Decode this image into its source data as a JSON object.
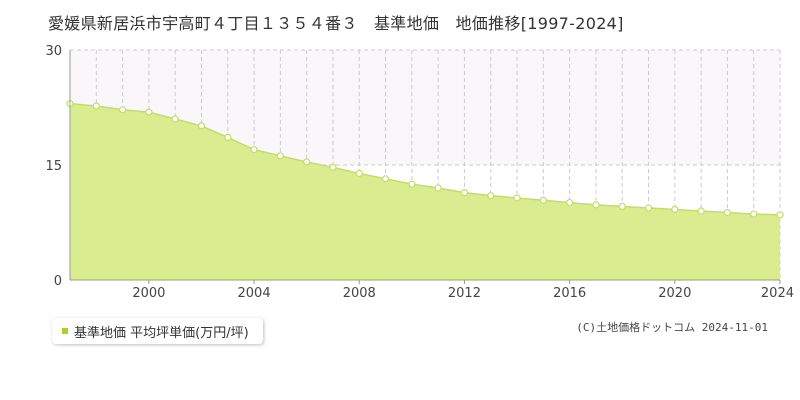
{
  "title": "愛媛県新居浜市宇高町４丁目１３５４番３　基準地価　地価推移[1997-2024]",
  "legend_label": "基準地価 平均坪単価(万円/坪)",
  "credit": "(C)土地価格ドットコム 2024-11-01",
  "colors": {
    "area_fill": "#dbec90",
    "line": "#c2e05a",
    "marker_fill": "#ffffff",
    "legend_swatch": "#a8d228"
  },
  "chart_data": {
    "type": "area",
    "title": "愛媛県新居浜市宇高町４丁目１３５４番３　基準地価　地価推移[1997-2024]",
    "xlabel": "",
    "ylabel": "",
    "xlim": [
      1997,
      2024
    ],
    "ylim": [
      0,
      30
    ],
    "x_ticks": [
      2000,
      2004,
      2008,
      2012,
      2016,
      2020,
      2024
    ],
    "y_ticks": [
      0,
      15,
      30
    ],
    "grid": true,
    "legend_position": "bottom-left",
    "series": [
      {
        "name": "基準地価 平均坪単価(万円/坪)",
        "x": [
          1997,
          1998,
          1999,
          2000,
          2001,
          2002,
          2003,
          2004,
          2005,
          2006,
          2007,
          2008,
          2009,
          2010,
          2011,
          2012,
          2013,
          2014,
          2015,
          2016,
          2017,
          2018,
          2019,
          2020,
          2021,
          2022,
          2023,
          2024
        ],
        "y": [
          23.0,
          22.7,
          22.2,
          21.9,
          21.0,
          20.1,
          18.6,
          17.0,
          16.2,
          15.4,
          14.7,
          13.9,
          13.2,
          12.5,
          12.0,
          11.4,
          11.0,
          10.7,
          10.4,
          10.1,
          9.8,
          9.6,
          9.4,
          9.2,
          9.0,
          8.8,
          8.6,
          8.5
        ]
      }
    ]
  }
}
